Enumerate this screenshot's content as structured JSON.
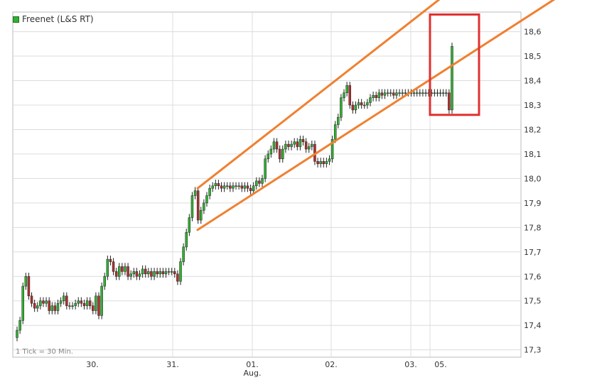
{
  "legend": {
    "label": "Freenet (L&S RT)",
    "color": "#31b131"
  },
  "chart_data": {
    "type": "candlestick",
    "title": "",
    "xlabel": "",
    "ylabel": "",
    "ylim": [
      17.27,
      18.68
    ],
    "yticks": [
      "17,3",
      "17,4",
      "17,5",
      "17,6",
      "17,7",
      "17,8",
      "17,9",
      "18,0",
      "18,1",
      "18,2",
      "18,3",
      "18,4",
      "18,5",
      "18,6"
    ],
    "xticks": [
      "30.",
      "31.",
      "01.",
      "02.",
      "03.",
      "05."
    ],
    "xsublabel": "Aug.",
    "note": "1 Tick = 30 Min.",
    "colors": {
      "up": "#31b131",
      "down": "#b03030",
      "trend": "#f08030",
      "box": "#e03030",
      "grid": "#dcdcdc"
    },
    "series": [
      {
        "values": [
          17.38,
          17.42,
          17.56,
          17.6,
          17.52,
          17.49,
          17.47,
          17.48,
          17.5,
          17.49,
          17.5,
          17.46,
          17.48,
          17.46,
          17.49,
          17.5,
          17.52,
          17.48,
          17.48,
          17.48,
          17.49,
          17.5,
          17.49,
          17.48,
          17.5,
          17.48,
          17.46,
          17.52,
          17.44,
          17.56,
          17.6,
          17.67,
          17.66,
          17.62,
          17.6,
          17.64,
          17.62,
          17.64,
          17.6,
          17.61,
          17.62,
          17.6,
          17.61,
          17.63,
          17.61,
          17.62,
          17.6,
          17.62,
          17.61,
          17.62,
          17.61,
          17.62,
          17.62,
          17.62,
          17.61,
          17.58,
          17.66,
          17.72,
          17.78,
          17.84,
          17.93,
          17.95,
          17.83,
          17.87,
          17.9,
          17.93,
          17.96,
          17.97,
          17.98,
          17.97,
          17.96,
          17.97,
          17.97,
          17.96,
          17.97,
          17.97,
          17.97,
          17.96,
          17.97,
          17.96,
          17.95,
          17.97,
          17.99,
          17.98,
          18.0,
          18.08,
          18.1,
          18.12,
          18.15,
          18.12,
          18.08,
          18.12,
          18.14,
          18.13,
          18.14,
          18.15,
          18.13,
          18.16,
          18.15,
          18.12,
          18.13,
          18.14,
          18.07,
          18.06,
          18.07,
          18.06,
          18.07,
          18.08,
          18.16,
          18.22,
          18.25,
          18.33,
          18.35,
          18.38,
          18.3,
          18.28,
          18.3,
          18.31,
          18.3,
          18.3,
          18.31,
          18.33,
          18.34,
          18.33,
          18.35,
          18.34,
          18.35,
          18.35,
          18.35,
          18.34,
          18.35,
          18.35,
          18.35,
          18.35,
          18.35,
          18.35,
          18.35,
          18.35,
          18.35,
          18.35,
          18.35,
          18.35,
          18.35,
          18.35,
          18.35,
          18.35,
          18.35,
          18.35,
          18.28,
          18.54
        ]
      }
    ],
    "trendlines": [
      {
        "from": [
          "31.",
          17.96
        ],
        "to": [
          "05.",
          18.77
        ]
      },
      {
        "from": [
          "31.",
          17.79
        ],
        "to": [
          "05.",
          18.46
        ]
      }
    ],
    "highlight_box": {
      "label": "",
      "ylim": [
        18.26,
        18.67
      ]
    }
  }
}
